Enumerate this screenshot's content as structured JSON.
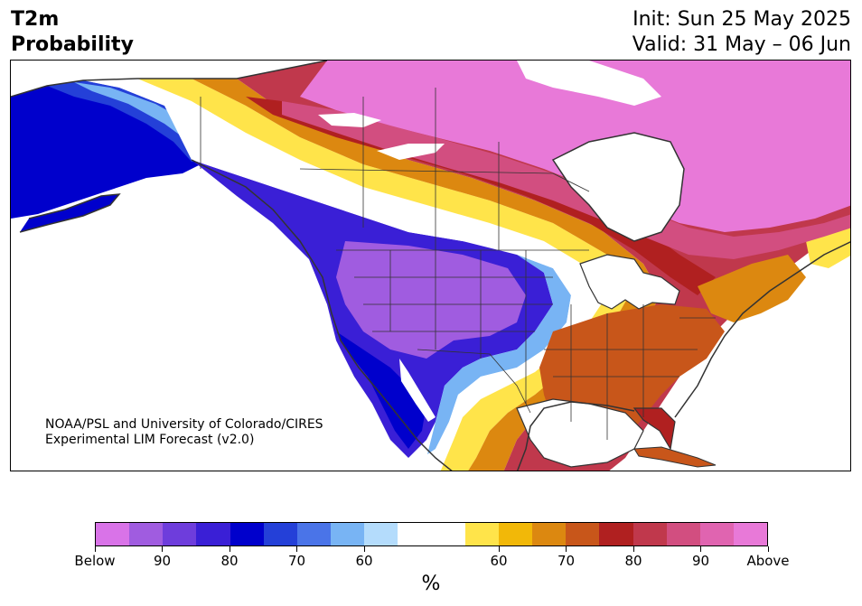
{
  "title": {
    "line1": "T2m",
    "line2": "Probability",
    "init": "Init: Sun 25 May 2025",
    "valid": "Valid: 31 May – 06 Jun"
  },
  "credit": {
    "line1": "NOAA/PSL and University of Colorado/CIRES",
    "line2": "Experimental LIM Forecast (v2.0)"
  },
  "colorbar": {
    "colors": [
      "#d973e8",
      "#a05ce0",
      "#6e3ddc",
      "#3a1fd6",
      "#0000cc",
      "#2440d8",
      "#4a74e8",
      "#78b4f4",
      "#b4dcfc",
      "#ffffff",
      "#ffffff",
      "#ffe44a",
      "#f2b808",
      "#dc8810",
      "#c8561a",
      "#b02020",
      "#c0384c",
      "#d24e80",
      "#e064b0",
      "#e879d8"
    ],
    "tick_labels": [
      "Below",
      "90",
      "80",
      "70",
      "60",
      "60",
      "70",
      "80",
      "90",
      "Above"
    ],
    "unit": "%"
  },
  "map_colors": {
    "below_strong": "#0000cc",
    "below_mid": "#3a1fd6",
    "below_weak": "#78b4f4",
    "below_purple": "#a05ce0",
    "above_strong": "#e879d8",
    "above_mid": "#c0384c",
    "above_weak": "#ffe44a",
    "above_orange": "#c8561a",
    "borders": "#333333"
  }
}
